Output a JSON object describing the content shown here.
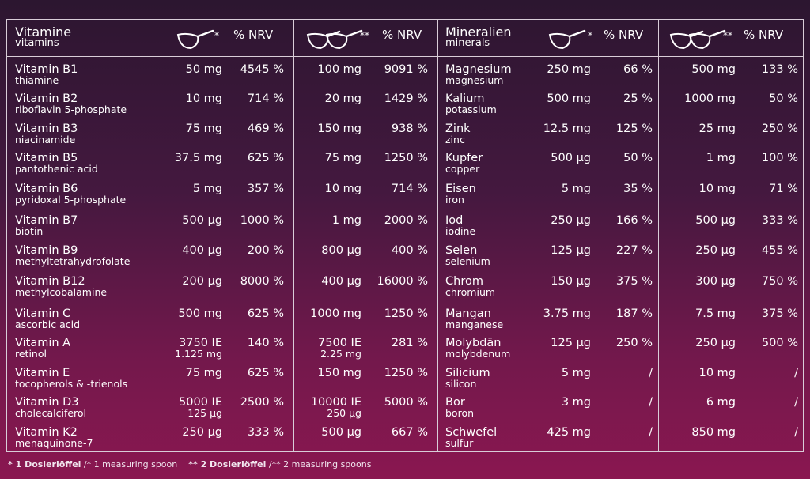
{
  "vitamins_header": {
    "title": "Vitamine",
    "subtitle": "vitamins",
    "nrv1": "% NRV",
    "nrv2": "% NRV",
    "scoop1_mark": "*",
    "scoop2_mark": "**"
  },
  "minerals_header": {
    "title": "Mineralien",
    "subtitle": "minerals",
    "nrv1": "% NRV",
    "nrv2": "% NRV",
    "scoop1_mark": "*",
    "scoop2_mark": "**"
  },
  "vitamins": [
    {
      "name": "Vitamin B1",
      "sub": "thiamine",
      "amt1": "50 mg",
      "amt1b": "",
      "nrv1": "4545 %",
      "amt2": "100 mg",
      "amt2b": "",
      "nrv2": "9091 %"
    },
    {
      "name": "Vitamin B2",
      "sub": "riboflavin 5-phosphate",
      "amt1": "10 mg",
      "amt1b": "",
      "nrv1": "714 %",
      "amt2": "20 mg",
      "amt2b": "",
      "nrv2": "1429 %"
    },
    {
      "name": "Vitamin B3",
      "sub": "niacinamide",
      "amt1": "75 mg",
      "amt1b": "",
      "nrv1": "469 %",
      "amt2": "150 mg",
      "amt2b": "",
      "nrv2": "938 %"
    },
    {
      "name": "Vitamin B5",
      "sub": "pantothenic acid",
      "amt1": "37.5 mg",
      "amt1b": "",
      "nrv1": "625 %",
      "amt2": "75 mg",
      "amt2b": "",
      "nrv2": "1250 %"
    },
    {
      "name": "Vitamin B6",
      "sub": "pyridoxal 5-phosphate",
      "amt1": "5 mg",
      "amt1b": "",
      "nrv1": "357 %",
      "amt2": "10 mg",
      "amt2b": "",
      "nrv2": "714 %"
    },
    {
      "name": "Vitamin B7",
      "sub": "biotin",
      "amt1": "500 µg",
      "amt1b": "",
      "nrv1": "1000 %",
      "amt2": "1 mg",
      "amt2b": "",
      "nrv2": "2000 %"
    },
    {
      "name": "Vitamin B9",
      "sub": "methyltetrahydrofolate",
      "amt1": "400 µg",
      "amt1b": "",
      "nrv1": "200 %",
      "amt2": "800 µg",
      "amt2b": "",
      "nrv2": "400 %"
    },
    {
      "name": "Vitamin B12",
      "sub": "methylcobalamine",
      "amt1": "200 µg",
      "amt1b": "",
      "nrv1": "8000 %",
      "amt2": "400 µg",
      "amt2b": "",
      "nrv2": "16000 %"
    },
    {
      "name": "Vitamin C",
      "sub": "ascorbic acid",
      "amt1": "500 mg",
      "amt1b": "",
      "nrv1": "625 %",
      "amt2": "1000 mg",
      "amt2b": "",
      "nrv2": "1250 %"
    },
    {
      "name": "Vitamin A",
      "sub": "retinol",
      "amt1": "3750 IE",
      "amt1b": "1.125 mg",
      "nrv1": "140 %",
      "amt2": "7500 IE",
      "amt2b": "2.25 mg",
      "nrv2": "281 %"
    },
    {
      "name": "Vitamin E",
      "sub": "tocopherols & -trienols",
      "amt1": "75 mg",
      "amt1b": "",
      "nrv1": "625 %",
      "amt2": "150 mg",
      "amt2b": "",
      "nrv2": "1250 %"
    },
    {
      "name": "Vitamin D3",
      "sub": "cholecalciferol",
      "amt1": "5000 IE",
      "amt1b": "125 µg",
      "nrv1": "2500 %",
      "amt2": "10000 IE",
      "amt2b": "250 µg",
      "nrv2": "5000 %"
    },
    {
      "name": "Vitamin K2",
      "sub": "menaquinone-7",
      "amt1": "250 µg",
      "amt1b": "",
      "nrv1": "333 %",
      "amt2": "500 µg",
      "amt2b": "",
      "nrv2": "667 %"
    }
  ],
  "minerals": [
    {
      "name": "Magnesium",
      "sub": "magnesium",
      "amt1": "250 mg",
      "nrv1": "66 %",
      "amt2": "500 mg",
      "nrv2": "133 %"
    },
    {
      "name": "Kalium",
      "sub": "potassium",
      "amt1": "500 mg",
      "nrv1": "25 %",
      "amt2": "1000 mg",
      "nrv2": "50 %"
    },
    {
      "name": "Zink",
      "sub": "zinc",
      "amt1": "12.5 mg",
      "nrv1": "125 %",
      "amt2": "25 mg",
      "nrv2": "250 %"
    },
    {
      "name": "Kupfer",
      "sub": "copper",
      "amt1": "500 µg",
      "nrv1": "50 %",
      "amt2": "1 mg",
      "nrv2": "100 %"
    },
    {
      "name": "Eisen",
      "sub": "iron",
      "amt1": "5 mg",
      "nrv1": "35 %",
      "amt2": "10 mg",
      "nrv2": "71 %"
    },
    {
      "name": "Iod",
      "sub": "iodine",
      "amt1": "250 µg",
      "nrv1": "166 %",
      "amt2": "500 µg",
      "nrv2": "333 %"
    },
    {
      "name": "Selen",
      "sub": "selenium",
      "amt1": "125 µg",
      "nrv1": "227 %",
      "amt2": "250 µg",
      "nrv2": "455 %"
    },
    {
      "name": "Chrom",
      "sub": "chromium",
      "amt1": "150 µg",
      "nrv1": "375 %",
      "amt2": "300 µg",
      "nrv2": "750 %"
    },
    {
      "name": "Mangan",
      "sub": "manganese",
      "amt1": "3.75 mg",
      "nrv1": "187 %",
      "amt2": "7.5 mg",
      "nrv2": "375 %"
    },
    {
      "name": "Molybdän",
      "sub": "molybdenum",
      "amt1": "125 µg",
      "nrv1": "250 %",
      "amt2": "250 µg",
      "nrv2": "500 %"
    },
    {
      "name": "Silicium",
      "sub": "silicon",
      "amt1": "5 mg",
      "nrv1": "/",
      "amt2": "10 mg",
      "nrv2": "/"
    },
    {
      "name": "Bor",
      "sub": "boron",
      "amt1": "3 mg",
      "nrv1": "/",
      "amt2": "6 mg",
      "nrv2": "/"
    },
    {
      "name": "Schwefel",
      "sub": "sulfur",
      "amt1": "425 mg",
      "nrv1": "/",
      "amt2": "850 mg",
      "nrv2": "/"
    }
  ],
  "footer": {
    "note1_bold": "* 1 Dosierlöffel",
    "note1_rest": " /* 1 measuring spoon",
    "note2_bold": "** 2 Dosierlöffel",
    "note2_rest": " /** 2 measuring spoons"
  },
  "colors": {
    "line": "#d9cdd8",
    "text": "#ffffff"
  },
  "icons": {
    "scoop1": "measuring-spoon-icon",
    "scoop2": "two-measuring-spoons-icon"
  }
}
